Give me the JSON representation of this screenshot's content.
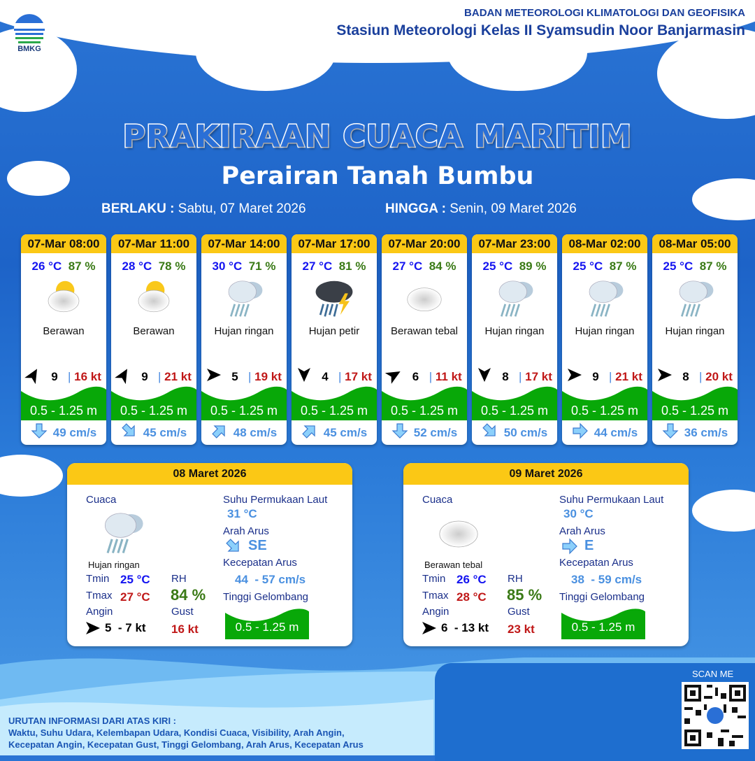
{
  "header": {
    "org": "BADAN METEOROLOGI KLIMATOLOGI DAN GEOFISIKA",
    "station": "Stasiun Meteorologi Kelas II Syamsudin Noor Banjarmasin",
    "logo_text": "BMKG"
  },
  "title": "PRAKIRAAN CUACA MARITIM",
  "subtitle": "Perairan Tanah Bumbu",
  "validity": {
    "from_label": "BERLAKU :",
    "from": "Sabtu, 07 Maret 2026",
    "to_label": "HINGGA :",
    "to": "Senin, 09 Maret 2026"
  },
  "colors": {
    "header_yellow": "#fbc815",
    "wave_green": "#08a808",
    "temp": "#1414f0",
    "rh": "#3a7a16",
    "gust": "#c01818",
    "current": "#4a90e0"
  },
  "forecasts": [
    {
      "time": "07-Mar 08:00",
      "temp": "26 °C",
      "rh": "87 %",
      "icon": "partly-cloudy-icon",
      "cond": "Berawan",
      "wind_dir_deg": -60,
      "wind": "9",
      "gust": "16 kt",
      "wave": "0.5 - 1.25 m",
      "cur_dir_deg": 90,
      "current": "49 cm/s"
    },
    {
      "time": "07-Mar 11:00",
      "temp": "28 °C",
      "rh": "78 %",
      "icon": "partly-cloudy-icon",
      "cond": "Berawan",
      "wind_dir_deg": -60,
      "wind": "9",
      "gust": "21 kt",
      "wave": "0.5 - 1.25 m",
      "cur_dir_deg": 45,
      "current": "45 cm/s"
    },
    {
      "time": "07-Mar 14:00",
      "temp": "30 °C",
      "rh": "71 %",
      "icon": "light-rain-icon",
      "cond": "Hujan ringan",
      "wind_dir_deg": 0,
      "wind": "5",
      "gust": "19 kt",
      "wave": "0.5 - 1.25 m",
      "cur_dir_deg": -45,
      "current": "48 cm/s"
    },
    {
      "time": "07-Mar 17:00",
      "temp": "27 °C",
      "rh": "81 %",
      "icon": "thunderstorm-icon",
      "cond": "Hujan petir",
      "wind_dir_deg": 90,
      "wind": "4",
      "gust": "17 kt",
      "wave": "0.5 - 1.25 m",
      "cur_dir_deg": -45,
      "current": "45 cm/s"
    },
    {
      "time": "07-Mar 20:00",
      "temp": "27 °C",
      "rh": "84 %",
      "icon": "overcast-icon",
      "cond": "Berawan tebal",
      "wind_dir_deg": -30,
      "wind": "6",
      "gust": "11 kt",
      "wave": "0.5 - 1.25 m",
      "cur_dir_deg": 90,
      "current": "52 cm/s"
    },
    {
      "time": "07-Mar 23:00",
      "temp": "25 °C",
      "rh": "89 %",
      "icon": "light-rain-icon",
      "cond": "Hujan ringan",
      "wind_dir_deg": 90,
      "wind": "8",
      "gust": "17 kt",
      "wave": "0.5 - 1.25 m",
      "cur_dir_deg": 45,
      "current": "50 cm/s"
    },
    {
      "time": "08-Mar 02:00",
      "temp": "25 °C",
      "rh": "87 %",
      "icon": "light-rain-icon",
      "cond": "Hujan ringan",
      "wind_dir_deg": 0,
      "wind": "9",
      "gust": "21 kt",
      "wave": "0.5 - 1.25 m",
      "cur_dir_deg": 0,
      "current": "44 cm/s"
    },
    {
      "time": "08-Mar 05:00",
      "temp": "25 °C",
      "rh": "87 %",
      "icon": "light-rain-icon",
      "cond": "Hujan ringan",
      "wind_dir_deg": 0,
      "wind": "8",
      "gust": "20 kt",
      "wave": "0.5 - 1.25 m",
      "cur_dir_deg": 90,
      "current": "36 cm/s"
    }
  ],
  "daily": [
    {
      "date": "08 Maret 2026",
      "weather_label": "Cuaca",
      "icon": "light-rain-icon",
      "cond": "Hujan ringan",
      "tmin_label": "Tmin",
      "tmin": "25 °C",
      "tmax_label": "Tmax",
      "tmax": "27 °C",
      "rh_label": "RH",
      "rh": "84 %",
      "wind_label": "Angin",
      "wind": "5  - 7 kt",
      "gust_label": "Gust",
      "gust": "16 kt",
      "sst_label": "Suhu Permukaan Laut",
      "sst": "31 °C",
      "cur_dir_label": "Arah Arus",
      "cur_dir": "SE",
      "cur_dir_deg": 45,
      "cur_speed_label": "Kecepatan Arus",
      "cur_speed": "44  - 57 cm/s",
      "wave_label": "Tinggi Gelombang",
      "wave": "0.5 - 1.25 m"
    },
    {
      "date": "09 Maret 2026",
      "weather_label": "Cuaca",
      "icon": "overcast-icon",
      "cond": "Berawan tebal",
      "tmin_label": "Tmin",
      "tmin": "26 °C",
      "tmax_label": "Tmax",
      "tmax": "28 °C",
      "rh_label": "RH",
      "rh": "85 %",
      "wind_label": "Angin",
      "wind": "6  - 13 kt",
      "gust_label": "Gust",
      "gust": "23 kt",
      "sst_label": "Suhu Permukaan Laut",
      "sst": "30 °C",
      "cur_dir_label": "Arah Arus",
      "cur_dir": "E",
      "cur_dir_deg": 0,
      "cur_speed_label": "Kecepatan Arus",
      "cur_speed": "38  - 59 cm/s",
      "wave_label": "Tinggi Gelombang",
      "wave": "0.5 - 1.25 m"
    }
  ],
  "footer": {
    "info_title": "URUTAN INFORMASI DARI ATAS KIRI :",
    "info_line1": "Waktu, Suhu Udara, Kelembapan Udara, Kondisi Cuaca, Visibility, Arah Angin,",
    "info_line2": "Kecepatan Angin, Kecepatan Gust, Tinggi Gelombang, Arah Arus, Kecepatan Arus",
    "scan": "SCAN ME"
  }
}
